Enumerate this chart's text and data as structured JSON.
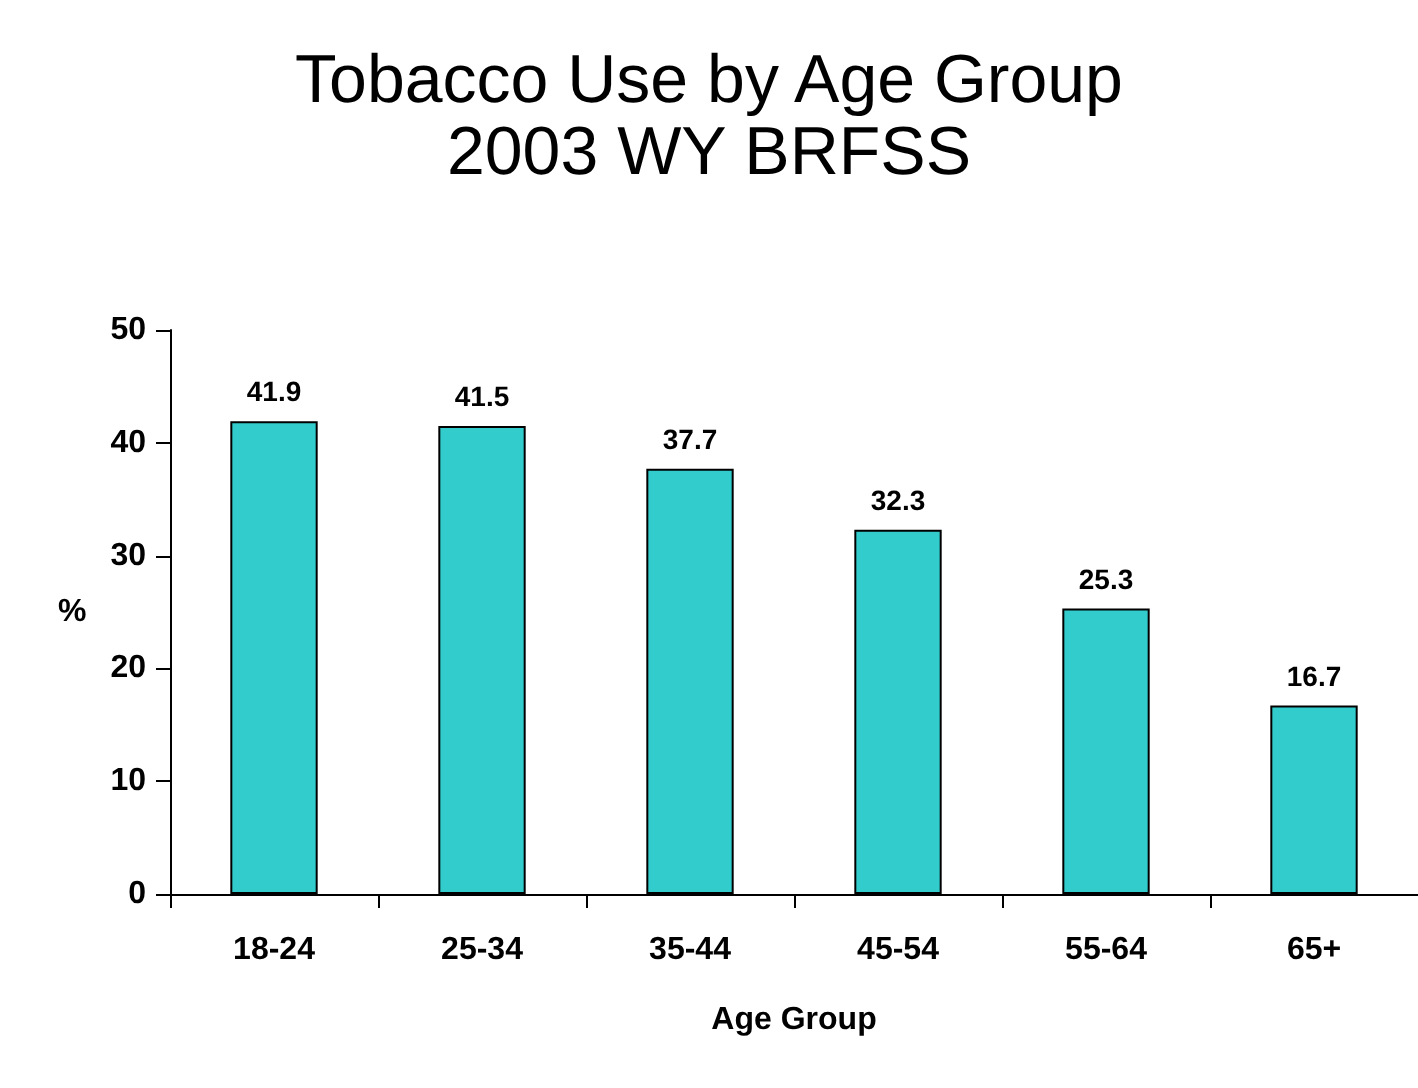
{
  "chart_data": {
    "type": "bar",
    "title": "Tobacco Use by Age Group",
    "subtitle": "2003 WY BRFSS",
    "xlabel": "Age Group",
    "ylabel": "%",
    "categories": [
      "18-24",
      "25-34",
      "35-44",
      "45-54",
      "55-64",
      "65+"
    ],
    "values": [
      41.9,
      41.5,
      37.7,
      32.3,
      25.3,
      16.7
    ],
    "color": "#33cccc",
    "ylim": [
      0,
      50
    ],
    "yticks": [
      0,
      10,
      20,
      30,
      40,
      50
    ],
    "grid": false,
    "data_labels": true
  }
}
